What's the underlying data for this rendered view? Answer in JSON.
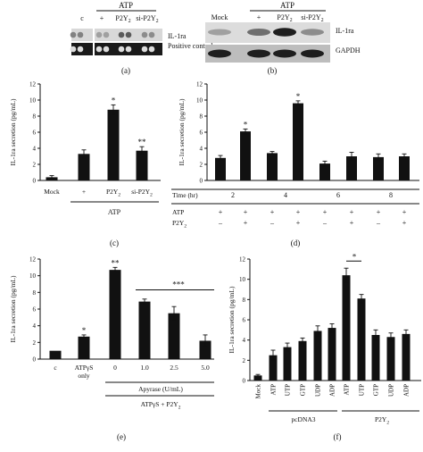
{
  "panel_a": {
    "header": "ATP",
    "cols": [
      "c",
      "+",
      "P2Y2",
      "si-P2Y2"
    ],
    "rows": [
      "IL-1ra",
      "Positive control"
    ],
    "caption": "(a)",
    "spot_rows": [
      [
        0.35,
        0.2,
        0.55,
        0.3
      ],
      [
        0.95,
        0.95,
        0.95,
        0.95
      ]
    ]
  },
  "panel_b": {
    "header": "ATP",
    "cols": [
      "Mock",
      "+",
      "P2Y2",
      "si-P2Y2"
    ],
    "rows": [
      "IL-1ra",
      "GAPDH"
    ],
    "caption": "(b)",
    "band_rows": [
      [
        0.25,
        0.5,
        0.9,
        0.35
      ],
      [
        0.9,
        0.9,
        0.9,
        0.9
      ]
    ]
  },
  "chart_data": [
    {
      "id": "c",
      "type": "bar",
      "caption": "(c)",
      "ylabel": "IL-1ra secretion (pg/mL)",
      "ylim": [
        0,
        12
      ],
      "yticks": [
        0,
        2,
        4,
        6,
        8,
        10,
        12
      ],
      "categories": [
        "Mock",
        "+",
        "P2Y2",
        "si-P2Y2"
      ],
      "values": [
        0.4,
        3.3,
        8.8,
        3.7
      ],
      "errors": [
        0.2,
        0.5,
        0.6,
        0.5
      ],
      "sig": [
        "",
        "",
        "*",
        "**"
      ],
      "group_label": "ATP"
    },
    {
      "id": "d",
      "type": "bar",
      "caption": "(d)",
      "ylabel": "IL-1ra secretion (pg/mL)",
      "ylim": [
        0,
        12
      ],
      "yticks": [
        0,
        2,
        4,
        6,
        8,
        10,
        12
      ],
      "values": [
        2.8,
        6.1,
        3.4,
        9.6,
        2.1,
        3.0,
        2.9,
        3.0
      ],
      "errors": [
        0.3,
        0.3,
        0.2,
        0.3,
        0.3,
        0.5,
        0.4,
        0.3
      ],
      "sig": [
        "",
        "*",
        "",
        "*",
        "",
        "",
        "",
        ""
      ],
      "time_label": "Time (hr)",
      "time_groups": [
        "2",
        "4",
        "6",
        "8"
      ],
      "atp_label": "ATP",
      "atp_row": [
        "+",
        "+",
        "+",
        "+",
        "+",
        "+",
        "+",
        "+"
      ],
      "p2y2_label": "P2Y2",
      "p2y2_row": [
        "–",
        "+",
        "–",
        "+",
        "–",
        "+",
        "–",
        "+"
      ]
    },
    {
      "id": "e",
      "type": "bar",
      "caption": "(e)",
      "ylabel": "IL-1ra secretion (pg/mL)",
      "ylim": [
        0,
        12
      ],
      "yticks": [
        0,
        2,
        4,
        6,
        8,
        10,
        12
      ],
      "categories": [
        "c",
        "ATPγS only",
        "0",
        "1.0",
        "2.5",
        "5.0"
      ],
      "values": [
        1.0,
        2.7,
        10.7,
        6.9,
        5.5,
        2.2
      ],
      "errors": [
        0.0,
        0.2,
        0.3,
        0.3,
        0.8,
        0.7
      ],
      "sig": [
        "",
        "*",
        "**",
        "",
        "",
        ""
      ],
      "bracket_sig": "***",
      "apyrase_label": "Apyrase (U/mL)",
      "group_label": "ATPγS + P2Y2"
    },
    {
      "id": "f",
      "type": "bar",
      "caption": "(f)",
      "ylabel": "IL-1ra secretion (pg/mL)",
      "ylim": [
        0,
        12
      ],
      "yticks": [
        0,
        2,
        4,
        6,
        8,
        10,
        12
      ],
      "categories": [
        "Mock",
        "ATP",
        "UTP",
        "GTP",
        "UDP",
        "ADP",
        "ATP",
        "UTP",
        "GTP",
        "UDP",
        "ADP"
      ],
      "values": [
        0.5,
        2.5,
        3.3,
        3.9,
        4.9,
        5.2,
        10.4,
        8.1,
        4.5,
        4.3,
        4.6
      ],
      "errors": [
        0.1,
        0.5,
        0.4,
        0.3,
        0.5,
        0.4,
        0.7,
        0.4,
        0.5,
        0.4,
        0.4
      ],
      "bracket_sig": "*",
      "group1_label": "pcDNA3",
      "group2_label": "P2Y2"
    }
  ]
}
